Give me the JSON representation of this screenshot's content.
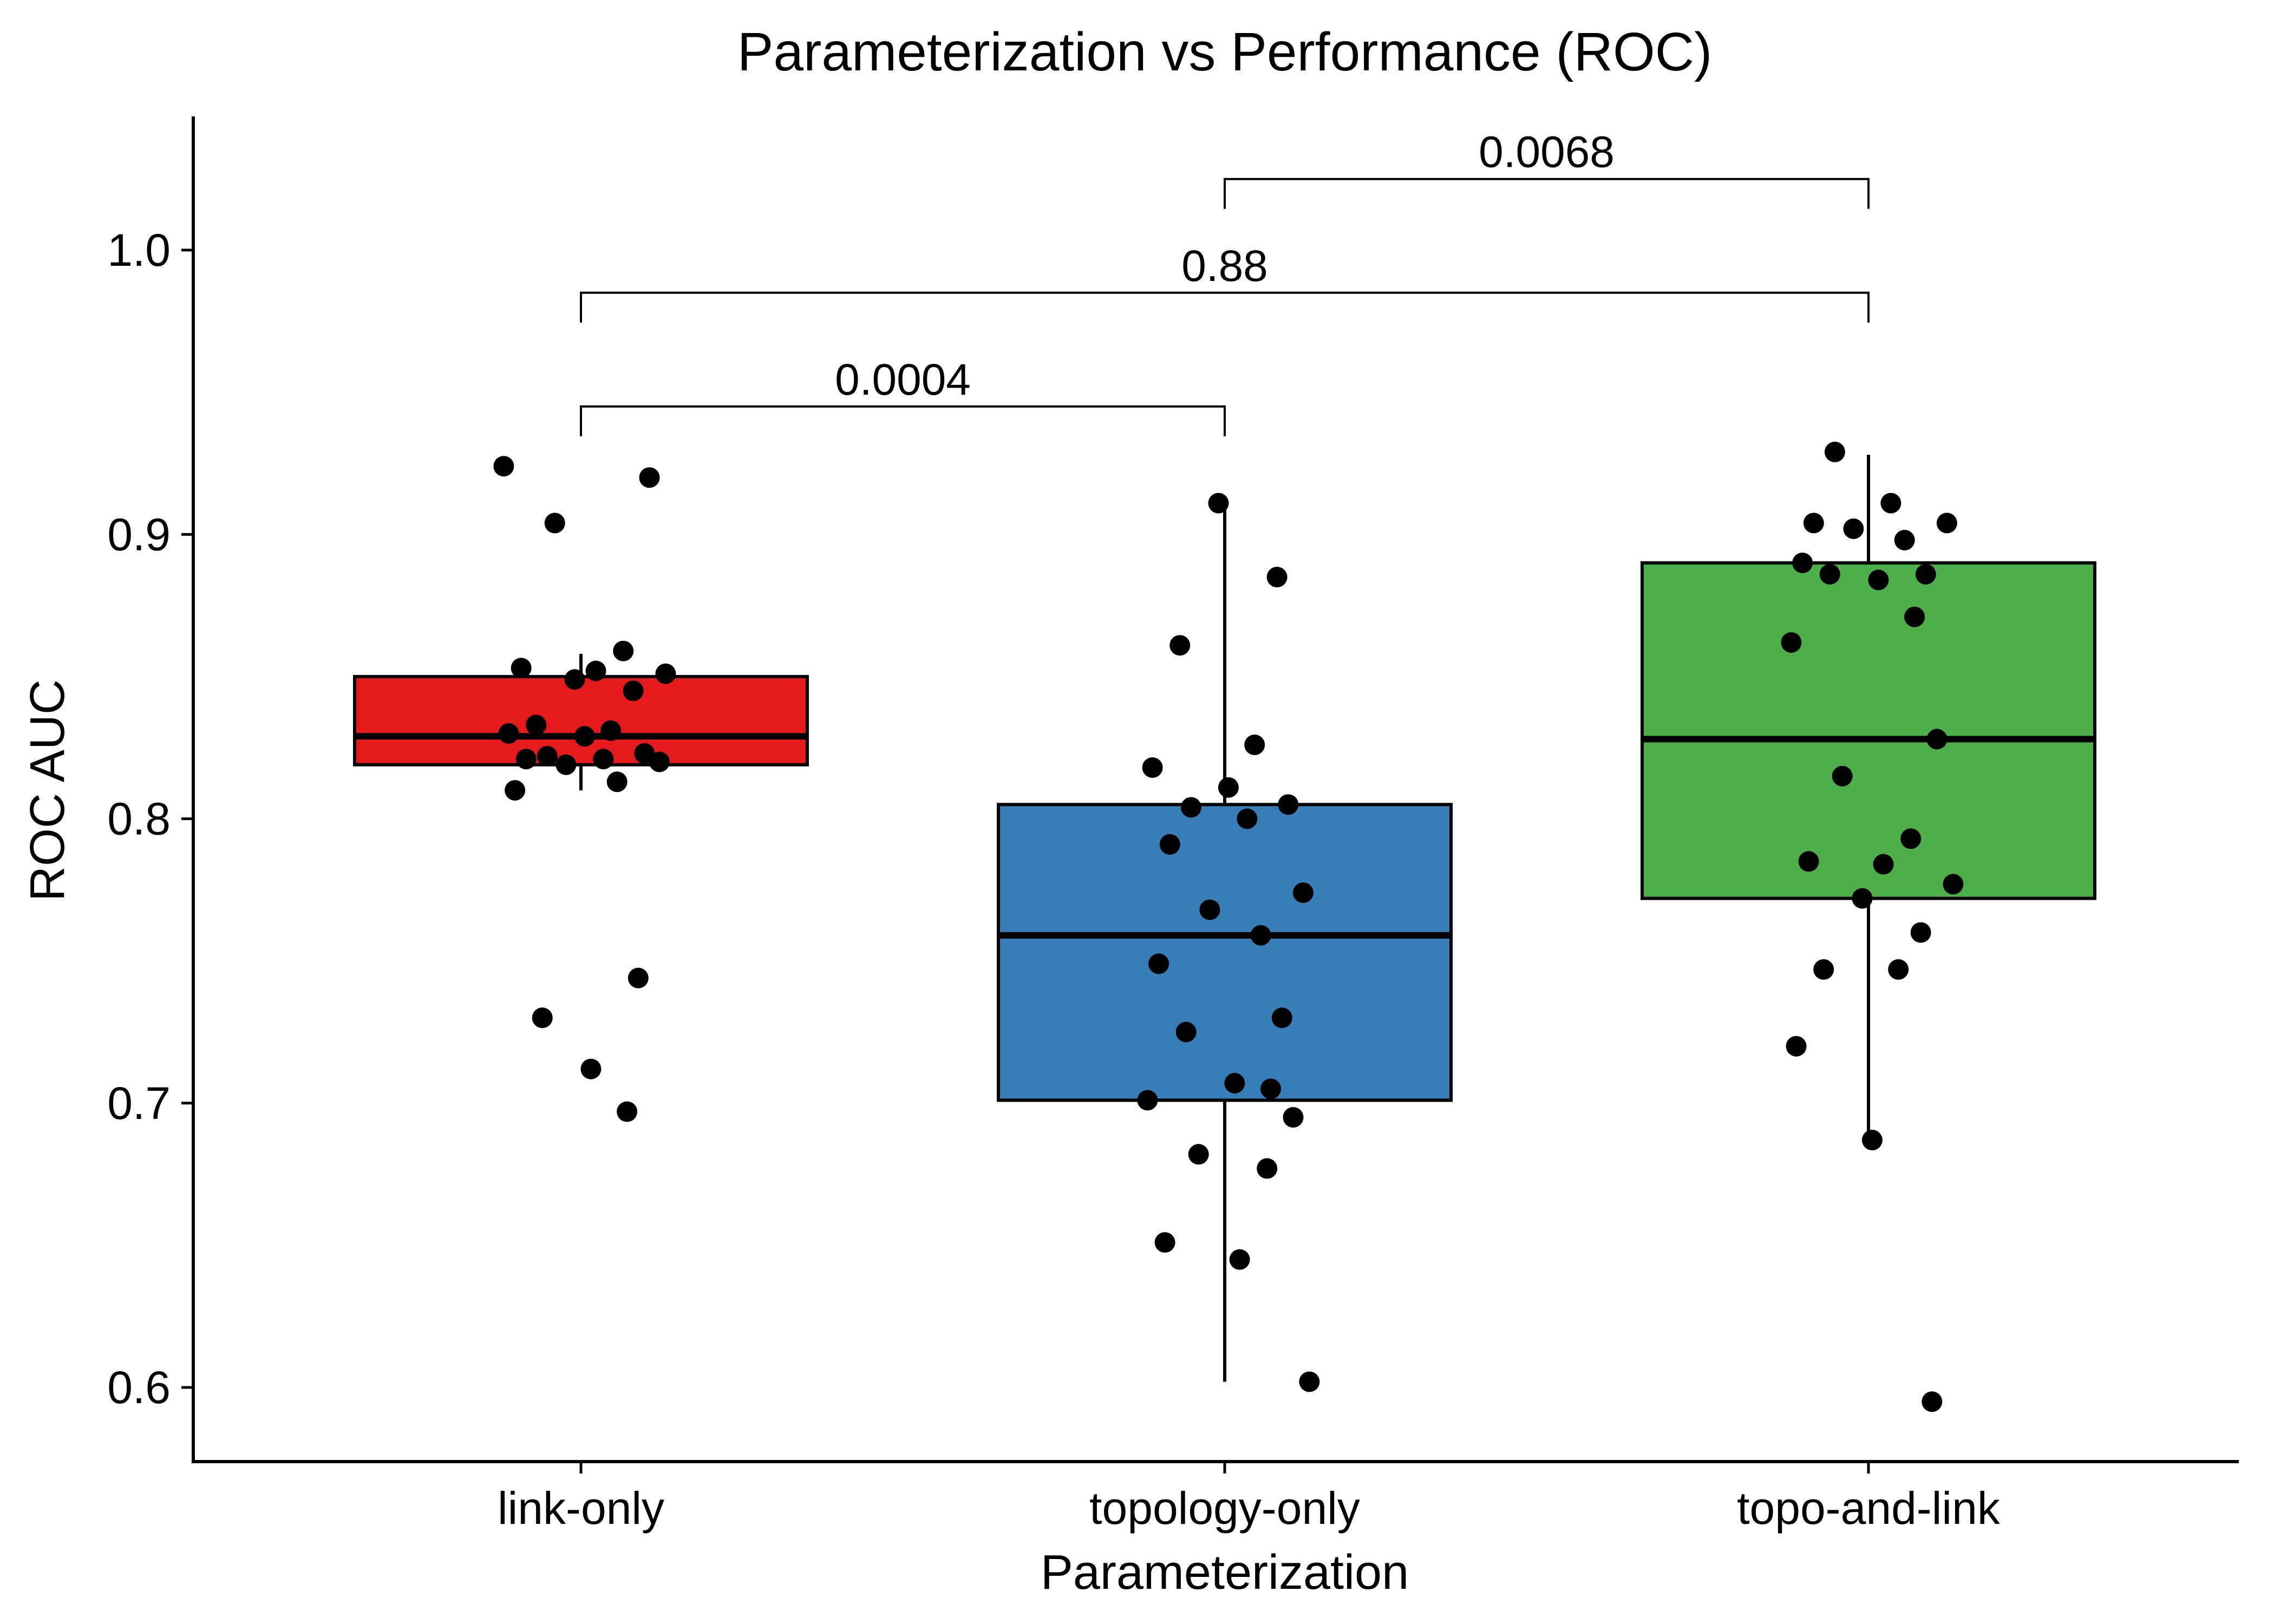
{
  "chart_data": {
    "type": "box",
    "title": "Parameterization vs Performance (ROC)",
    "xlabel": "Parameterization",
    "ylabel": "ROC AUC",
    "ylim": [
      0.575,
      1.045
    ],
    "yticks": [
      0.6,
      0.7,
      0.8,
      0.9,
      1.0
    ],
    "ytick_labels": [
      "0.6",
      "0.7",
      "0.8",
      "0.9",
      "1.0"
    ],
    "grid": false,
    "legend": "none",
    "categories": [
      "link-only",
      "topology-only",
      "topo-and-link"
    ],
    "groups": [
      {
        "name": "link-only",
        "color": "#E41A1C",
        "box": {
          "min": 0.81,
          "q1": 0.819,
          "median": 0.829,
          "q3": 0.85,
          "max": 0.858
        },
        "points": [
          0.924,
          0.92,
          0.904,
          0.859,
          0.853,
          0.852,
          0.851,
          0.849,
          0.845,
          0.833,
          0.831,
          0.83,
          0.829,
          0.823,
          0.822,
          0.821,
          0.821,
          0.82,
          0.819,
          0.813,
          0.81,
          0.744,
          0.73,
          0.712,
          0.697
        ]
      },
      {
        "name": "topology-only",
        "color": "#377EB8",
        "box": {
          "min": 0.602,
          "q1": 0.701,
          "median": 0.759,
          "q3": 0.805,
          "max": 0.91
        },
        "points": [
          0.911,
          0.885,
          0.861,
          0.826,
          0.818,
          0.811,
          0.805,
          0.804,
          0.8,
          0.791,
          0.774,
          0.768,
          0.759,
          0.749,
          0.73,
          0.725,
          0.707,
          0.705,
          0.701,
          0.695,
          0.682,
          0.677,
          0.651,
          0.645,
          0.602
        ]
      },
      {
        "name": "topo-and-link",
        "color": "#4DAF4A",
        "box": {
          "min": 0.688,
          "q1": 0.772,
          "median": 0.828,
          "q3": 0.89,
          "max": 0.928
        },
        "points": [
          0.929,
          0.911,
          0.904,
          0.904,
          0.902,
          0.898,
          0.89,
          0.886,
          0.886,
          0.884,
          0.871,
          0.862,
          0.828,
          0.815,
          0.793,
          0.785,
          0.784,
          0.777,
          0.772,
          0.76,
          0.747,
          0.747,
          0.72,
          0.687,
          0.595
        ]
      }
    ],
    "comparisons": [
      {
        "from": "link-only",
        "to": "topology-only",
        "label": "0.0004",
        "y": 0.945
      },
      {
        "from": "link-only",
        "to": "topo-and-link",
        "label": "0.88",
        "y": 0.985
      },
      {
        "from": "topology-only",
        "to": "topo-and-link",
        "label": "0.0068",
        "y": 1.025
      }
    ]
  }
}
